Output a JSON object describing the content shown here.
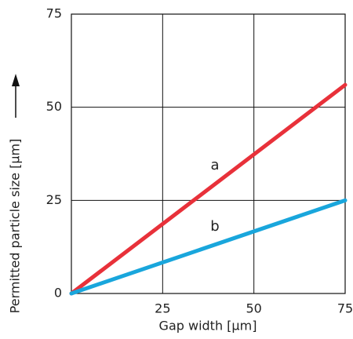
{
  "chart_data": {
    "type": "line",
    "x_label": "Gap width [µm]",
    "y_label": "Permitted particle size [µm]",
    "x": [
      0,
      75
    ],
    "series": [
      {
        "name": "a",
        "color": "#e8313a",
        "values": [
          0,
          56
        ]
      },
      {
        "name": "b",
        "color": "#19a6dc",
        "values": [
          0,
          25
        ]
      }
    ],
    "xlim": [
      0,
      75
    ],
    "xticks": [
      25,
      50,
      75
    ],
    "ylim": [
      0,
      75
    ],
    "yticks": [
      0,
      25,
      50,
      75
    ],
    "grid": true
  }
}
